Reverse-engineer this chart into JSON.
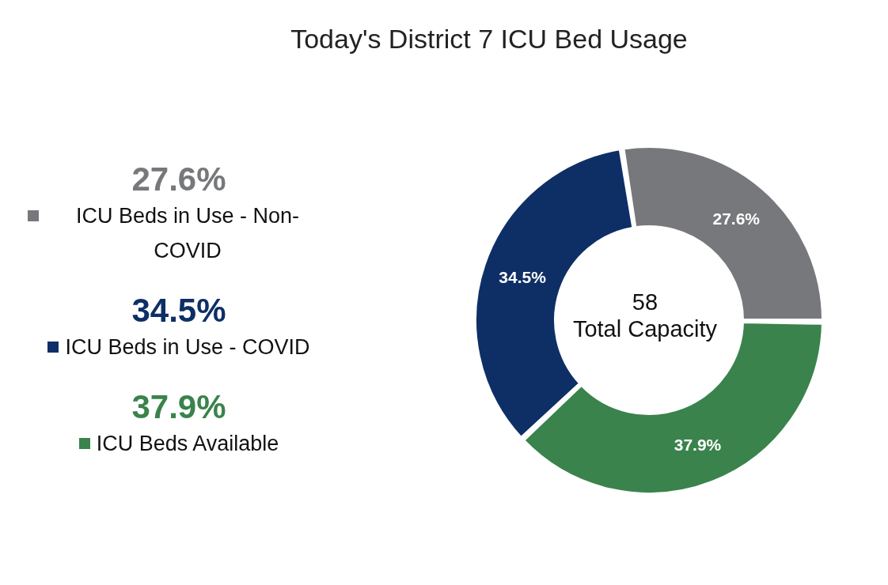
{
  "chart_data": {
    "type": "donut",
    "title": "Today's District 7 ICU Bed Usage",
    "categories": [
      "ICU Beds in Use - Non-COVID",
      "ICU Beds in Use - COVID",
      "ICU Beds Available"
    ],
    "values": [
      27.6,
      34.5,
      37.9
    ],
    "colors": [
      "#77787b",
      "#0e2f66",
      "#3a834c"
    ],
    "value_labels": [
      "27.6%",
      "34.5%",
      "37.9%"
    ],
    "legend": "left",
    "annotations": [
      "58",
      "Total Capacity"
    ]
  }
}
